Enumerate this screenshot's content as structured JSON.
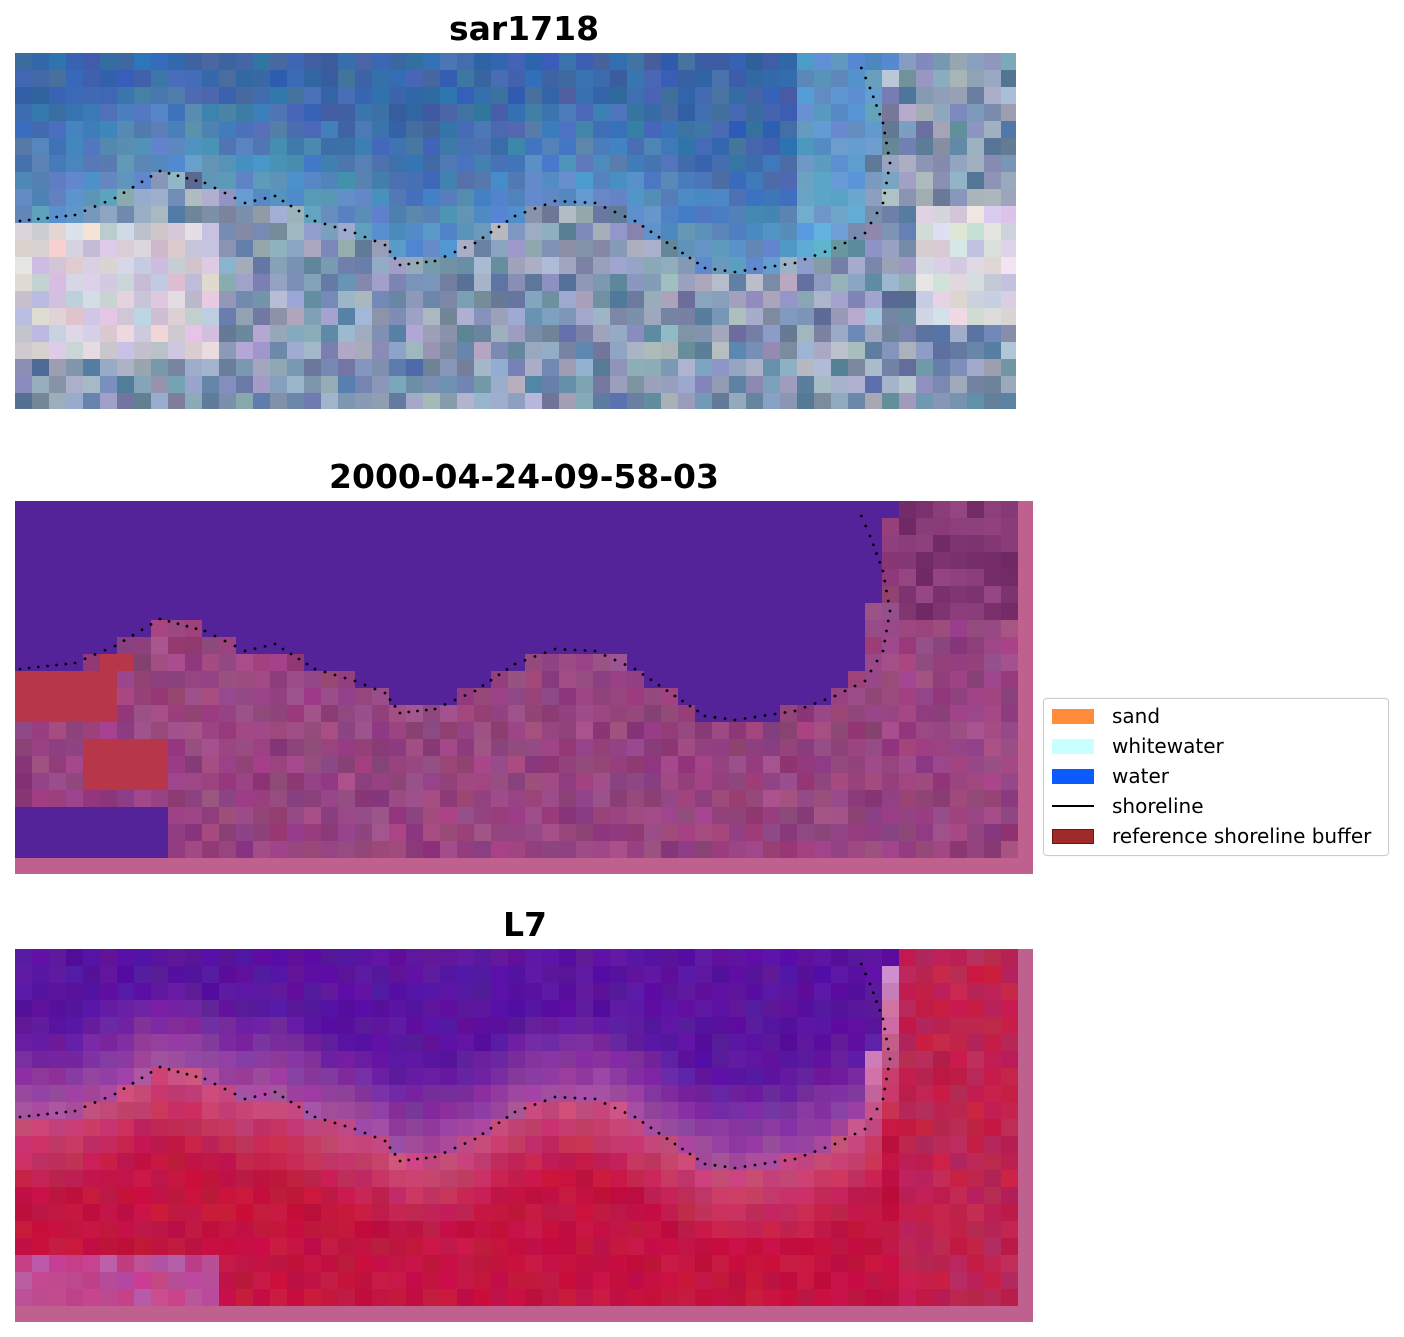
{
  "panels": [
    {
      "title": "sar1718",
      "style": "rgb"
    },
    {
      "title": "2000-04-24-09-58-03",
      "style": "classified"
    },
    {
      "title": "L7",
      "style": "index"
    }
  ],
  "legend": {
    "items": [
      {
        "label": "sand",
        "color": "#ff8c3a",
        "kind": "patch"
      },
      {
        "label": "whitewater",
        "color": "#c8ffff",
        "kind": "patch"
      },
      {
        "label": "water",
        "color": "#0a5cff",
        "kind": "patch"
      },
      {
        "label": "shoreline",
        "color": "#000000",
        "kind": "line"
      },
      {
        "label": "reference shoreline buffer",
        "color": "#9e2a2a",
        "kind": "patch"
      }
    ]
  },
  "colors": {
    "water_class": "#54239a",
    "land_class": "#8a3a76",
    "buffer_class": "#b8364a",
    "border_pink": "#c0608f",
    "shoreline_dots": "#000000"
  }
}
